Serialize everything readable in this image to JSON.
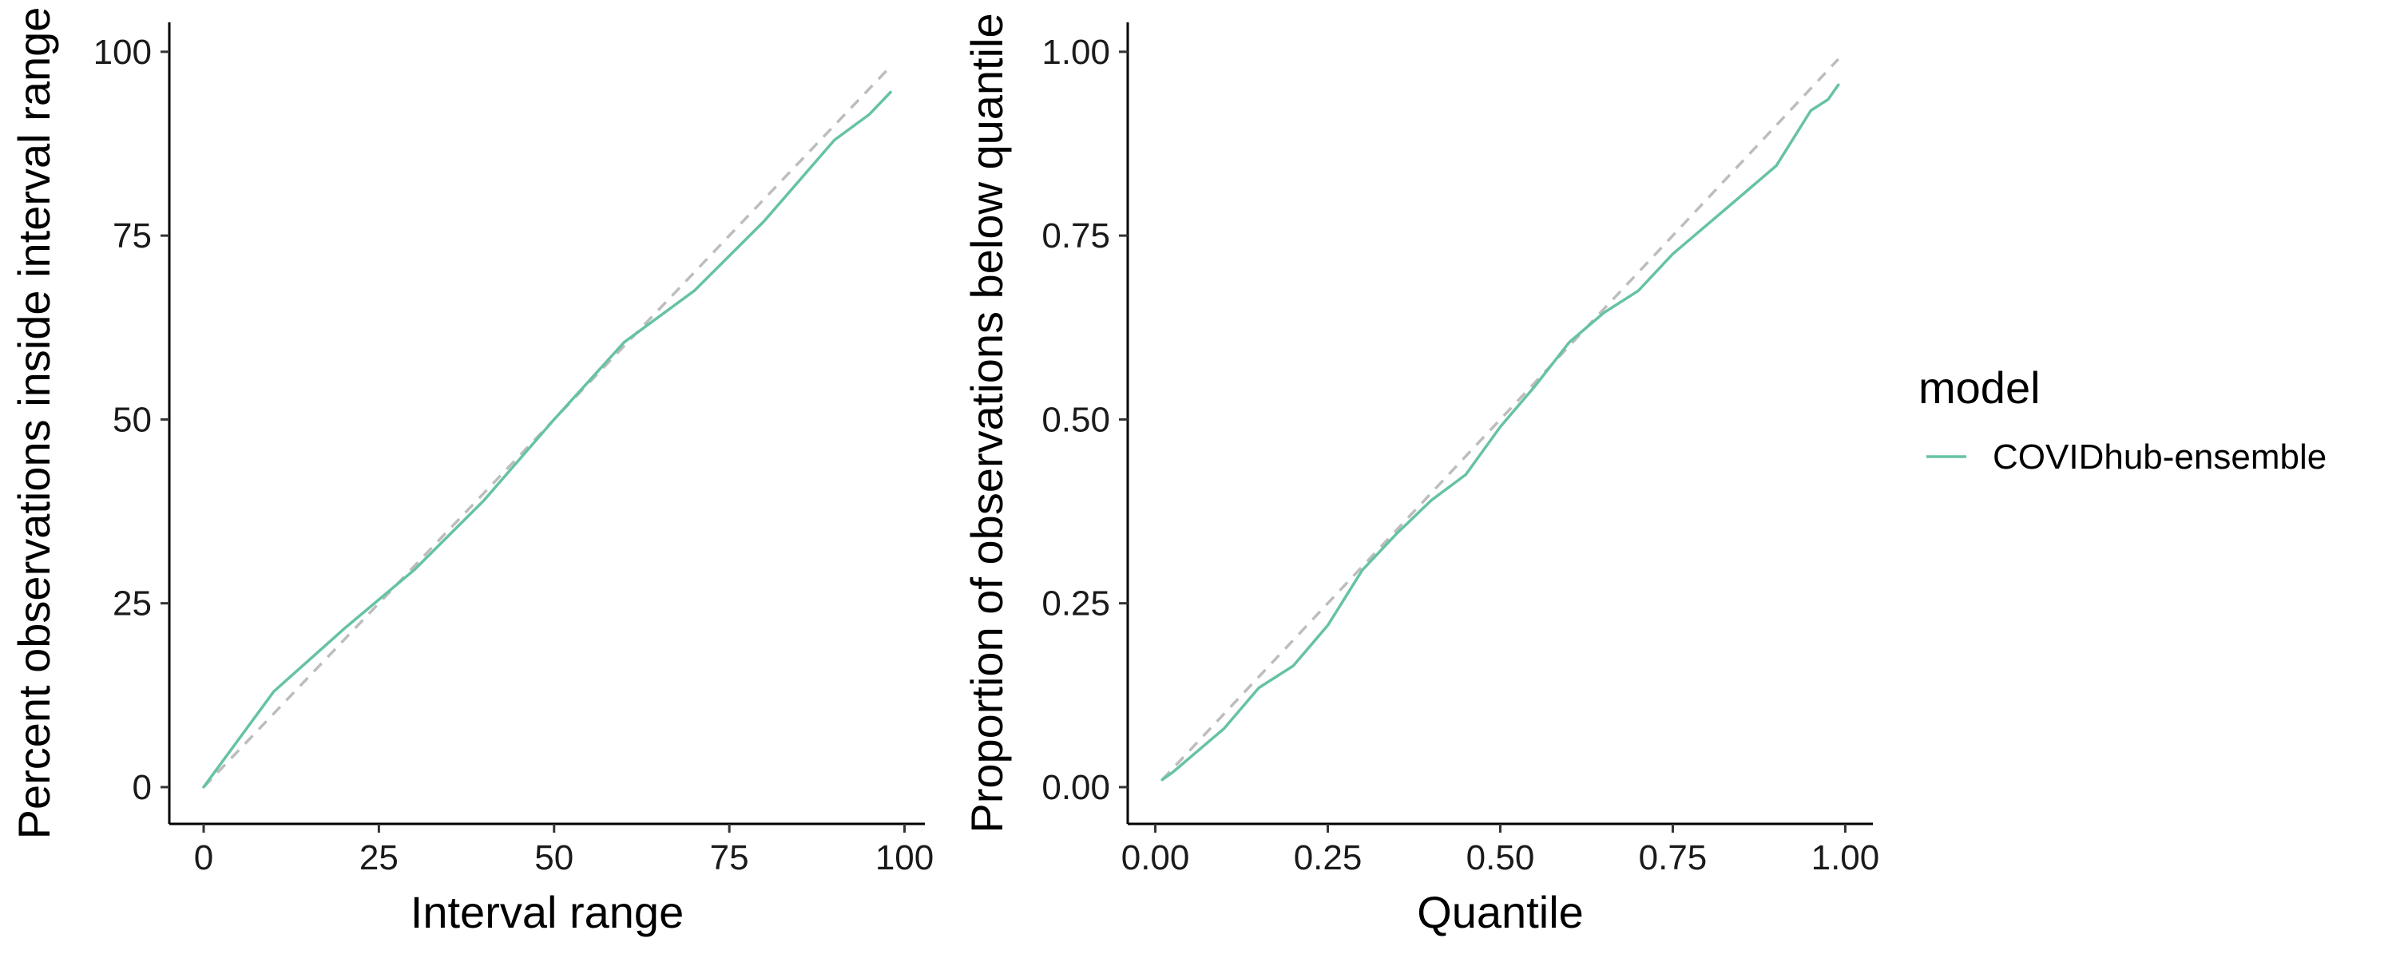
{
  "chart_data": [
    {
      "type": "line",
      "xlabel": "Interval range",
      "ylabel": "Percent observations inside interval range",
      "xlim": [
        -4.9,
        102.9
      ],
      "ylim": [
        -5,
        104
      ],
      "x_ticks": [
        0,
        25,
        50,
        75,
        100
      ],
      "y_ticks": [
        0,
        25,
        50,
        75,
        100
      ],
      "x_tick_labels": [
        "0",
        "25",
        "50",
        "75",
        "100"
      ],
      "y_tick_labels": [
        "0",
        "25",
        "50",
        "75",
        "100"
      ],
      "grid": false,
      "reference_line": {
        "style": "dashed",
        "color": "#bdbdbd",
        "x": [
          0,
          98
        ],
        "y": [
          0,
          98
        ]
      },
      "series": [
        {
          "color": "#66c2a5",
          "x": [
            0,
            10,
            20,
            30,
            40,
            50,
            60,
            70,
            80,
            90,
            95,
            98
          ],
          "y": [
            0,
            13,
            21.5,
            29.5,
            39,
            50,
            60.5,
            67.5,
            77,
            88,
            91.5,
            94.5
          ]
        }
      ]
    },
    {
      "type": "line",
      "xlabel": "Quantile",
      "ylabel": "Proportion of observations below quantile",
      "xlim": [
        -0.04,
        1.04
      ],
      "ylim": [
        -0.05,
        1.04
      ],
      "x_ticks": [
        0,
        0.25,
        0.5,
        0.75,
        1
      ],
      "y_ticks": [
        0,
        0.25,
        0.5,
        0.75,
        1
      ],
      "x_tick_labels": [
        "0.00",
        "0.25",
        "0.50",
        "0.75",
        "1.00"
      ],
      "y_tick_labels": [
        "0.00",
        "0.25",
        "0.50",
        "0.75",
        "1.00"
      ],
      "grid": false,
      "reference_line": {
        "style": "dashed",
        "color": "#bdbdbd",
        "x": [
          0.01,
          0.99
        ],
        "y": [
          0.01,
          0.99
        ]
      },
      "series": [
        {
          "color": "#66c2a5",
          "x": [
            0.01,
            0.025,
            0.05,
            0.1,
            0.15,
            0.2,
            0.25,
            0.3,
            0.35,
            0.4,
            0.45,
            0.5,
            0.55,
            0.6,
            0.65,
            0.7,
            0.75,
            0.8,
            0.85,
            0.9,
            0.95,
            0.975,
            0.99
          ],
          "y": [
            0.01,
            0.02,
            0.04,
            0.08,
            0.135,
            0.165,
            0.22,
            0.295,
            0.345,
            0.39,
            0.425,
            0.49,
            0.545,
            0.605,
            0.645,
            0.675,
            0.725,
            0.765,
            0.805,
            0.845,
            0.92,
            0.935,
            0.955
          ]
        }
      ]
    }
  ],
  "legend": {
    "title": "model",
    "placement": "right",
    "items": [
      {
        "label": "COVIDhub-ensemble",
        "color": "#66c2a5"
      }
    ]
  }
}
